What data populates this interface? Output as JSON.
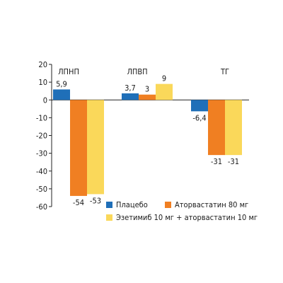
{
  "chart_data": {
    "type": "bar",
    "title": "",
    "xlabel": "",
    "ylabel": "",
    "categories": [
      "ЛПНП",
      "ЛПВП",
      "ТГ"
    ],
    "series": [
      {
        "name": "Плацебо",
        "color": "#1f6fb8",
        "values": [
          5.9,
          3.7,
          -6.4
        ],
        "labels": [
          "5,9",
          "3,7",
          "-6,4"
        ]
      },
      {
        "name": "Аторвастатин 80 мг",
        "color": "#f07f22",
        "values": [
          -54,
          3,
          -31
        ],
        "labels": [
          "-54",
          "3",
          "-31"
        ]
      },
      {
        "name": "Эзетимиб 10 мг + аторвастатин 10 мг",
        "color": "#fad85a",
        "values": [
          -53,
          9,
          -31
        ],
        "labels": [
          "-53",
          "9",
          "-31"
        ]
      }
    ],
    "ylim": [
      -60,
      20
    ],
    "yticks": [
      20,
      10,
      0,
      -10,
      -20,
      -30,
      -40,
      -50,
      -60
    ],
    "grid": false,
    "legend": "bottom-right"
  }
}
